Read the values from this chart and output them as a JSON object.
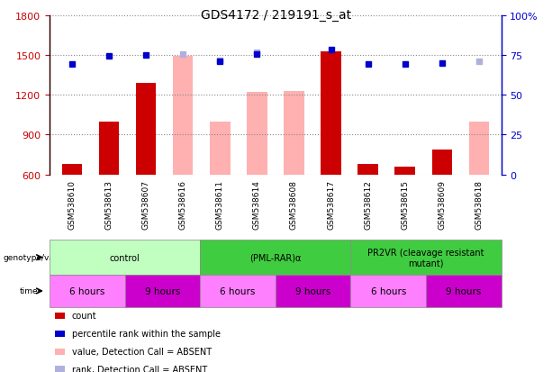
{
  "title": "GDS4172 / 219191_s_at",
  "samples": [
    "GSM538610",
    "GSM538613",
    "GSM538607",
    "GSM538616",
    "GSM538611",
    "GSM538614",
    "GSM538608",
    "GSM538617",
    "GSM538612",
    "GSM538615",
    "GSM538609",
    "GSM538618"
  ],
  "count_values": [
    680,
    1000,
    1290,
    null,
    null,
    null,
    null,
    1530,
    680,
    660,
    790,
    null
  ],
  "rank_values": [
    1430,
    1490,
    1500,
    null,
    1450,
    1510,
    null,
    1540,
    1430,
    1430,
    1440,
    null
  ],
  "absent_value_bars": [
    null,
    null,
    null,
    1490,
    1000,
    1220,
    1230,
    null,
    null,
    null,
    null,
    1000
  ],
  "absent_rank_values": [
    null,
    null,
    null,
    1510,
    1460,
    1520,
    null,
    null,
    null,
    null,
    null,
    1450
  ],
  "ylim_left": [
    600,
    1800
  ],
  "ylim_right": [
    0,
    100
  ],
  "yticks_left": [
    600,
    900,
    1200,
    1500,
    1800
  ],
  "yticks_right": [
    0,
    25,
    50,
    75,
    100
  ],
  "right_tick_labels": [
    "0",
    "25",
    "50",
    "75",
    "100%"
  ],
  "count_color": "#cc0000",
  "rank_color": "#0000cc",
  "absent_value_color": "#ffb0b0",
  "absent_rank_color": "#b0b0dd",
  "grid_color": "#888888",
  "sample_bg": "#d8d8d8",
  "genotype_groups": [
    {
      "label": "control",
      "cols": [
        0,
        1,
        2,
        3
      ],
      "color": "#c0ffc0"
    },
    {
      "label": "(PML-RAR)α",
      "cols": [
        4,
        5,
        6,
        7
      ],
      "color": "#40cc40"
    },
    {
      "label": "PR2VR (cleavage resistant\nmutant)",
      "cols": [
        8,
        9,
        10,
        11
      ],
      "color": "#40cc40"
    }
  ],
  "time_groups": [
    {
      "label": "6 hours",
      "cols": [
        0,
        1
      ],
      "color": "#ff80ff"
    },
    {
      "label": "9 hours",
      "cols": [
        2,
        3
      ],
      "color": "#cc00cc"
    },
    {
      "label": "6 hours",
      "cols": [
        4,
        5
      ],
      "color": "#ff80ff"
    },
    {
      "label": "9 hours",
      "cols": [
        6,
        7
      ],
      "color": "#cc00cc"
    },
    {
      "label": "6 hours",
      "cols": [
        8,
        9
      ],
      "color": "#ff80ff"
    },
    {
      "label": "9 hours",
      "cols": [
        10,
        11
      ],
      "color": "#cc00cc"
    }
  ],
  "legend_items": [
    {
      "color": "#cc0000",
      "label": "count"
    },
    {
      "color": "#0000cc",
      "label": "percentile rank within the sample"
    },
    {
      "color": "#ffb0b0",
      "label": "value, Detection Call = ABSENT"
    },
    {
      "color": "#b0b0dd",
      "label": "rank, Detection Call = ABSENT"
    }
  ]
}
